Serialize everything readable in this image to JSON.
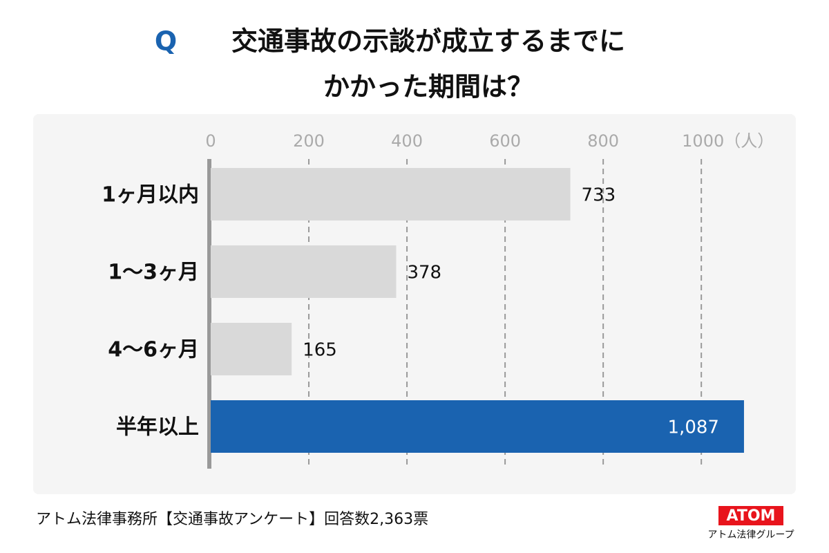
{
  "chart_data": {
    "type": "hbar",
    "title_prefix": "Q",
    "title": [
      "交通事故の示談が成立するまでに",
      "かかった期間は？"
    ],
    "categories": [
      "1ヶ月以内",
      "1～3ヶ月",
      "4～6ヶ月",
      "半年以上"
    ],
    "values": [
      733,
      378,
      165,
      1087
    ],
    "value_labels": [
      "733",
      "378",
      "165",
      "1,087"
    ],
    "colors": [
      "#d9d9d9",
      "#d9d9d9",
      "#d9d9d9",
      "#1a63b0"
    ],
    "xlim": [
      0,
      1180
    ],
    "xticks": [
      0,
      200,
      400,
      600,
      800,
      {
        "value": 1000,
        "label": "1000（人）"
      }
    ],
    "grid": true
  },
  "footer": {
    "source": "アトム法律事務所【交通事故アンケート】回答数2,363票",
    "logo": "ATOM",
    "logo_caption": "アトム法律グループ"
  }
}
